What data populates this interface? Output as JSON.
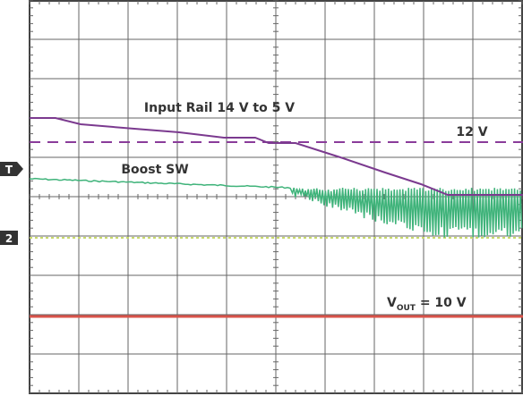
{
  "labels": {
    "input_rail": "Input Rail 14 V to 5 V",
    "twelve_v": "12 V",
    "boost_sw": "Boost SW",
    "vout_main": "V",
    "vout_sub": "OUT",
    "vout_rest": " = 10 V"
  },
  "markers": {
    "trigger": "T",
    "channel": "2"
  }
}
